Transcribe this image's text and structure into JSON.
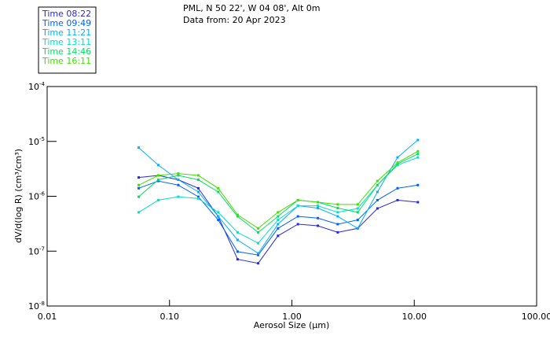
{
  "chart_data": {
    "type": "line",
    "title": "PML, N 50 22', W 04 08', Alt 0m",
    "subtitle": "Data from: 20 Apr 2023",
    "xlabel": "Aerosol Size (µm)",
    "ylabel": "dV/d(log R) (cm³/cm³)",
    "xscale": "log",
    "yscale": "log",
    "xlim": [
      0.01,
      100
    ],
    "ylim": [
      1e-08,
      0.0001
    ],
    "x_ticks": [
      {
        "value": 0.01,
        "label": "0.01"
      },
      {
        "value": 0.1,
        "label": "0.10"
      },
      {
        "value": 1,
        "label": "1.00"
      },
      {
        "value": 10,
        "label": "10.00"
      },
      {
        "value": 100,
        "label": "100.00"
      }
    ],
    "y_ticks": [
      {
        "value": 0.0001,
        "exp": "-4"
      },
      {
        "value": 1e-05,
        "exp": "-5"
      },
      {
        "value": 1e-06,
        "exp": "-6"
      },
      {
        "value": 1e-07,
        "exp": "-7"
      },
      {
        "value": 1e-08,
        "exp": "-8"
      }
    ],
    "y_tick_base": "10",
    "grid": false,
    "legend_position": "top-left",
    "x": [
      0.056,
      0.081,
      0.118,
      0.172,
      0.25,
      0.36,
      0.53,
      0.77,
      1.12,
      1.63,
      2.37,
      3.45,
      5.0,
      7.3,
      10.7
    ],
    "series": [
      {
        "name": "Time 08:22",
        "color": "#2828e0",
        "values": [
          2.2e-06,
          2.4e-06,
          2e-06,
          1.4e-06,
          4.3e-07,
          7.1e-08,
          6e-08,
          1.9e-07,
          3.1e-07,
          2.9e-07,
          2.2e-07,
          2.6e-07,
          6e-07,
          8.5e-07,
          7.8e-07
        ]
      },
      {
        "name": "Time 09:49",
        "color": "#0060ff",
        "values": [
          1.4e-06,
          1.9e-06,
          1.6e-06,
          9.8e-07,
          3.7e-07,
          9.8e-08,
          8.5e-08,
          2.6e-07,
          4.3e-07,
          4e-07,
          3.1e-07,
          3.7e-07,
          8.5e-07,
          1.4e-06,
          1.6e-06
        ]
      },
      {
        "name": "Time 11:21",
        "color": "#00b0ff",
        "values": [
          7.7e-06,
          3.7e-06,
          2e-06,
          1.2e-06,
          4.3e-07,
          1.6e-07,
          9.1e-08,
          3.1e-07,
          6.7e-07,
          6.1e-07,
          4.3e-07,
          2.6e-07,
          1.2e-06,
          5.1e-06,
          1.06e-05
        ]
      },
      {
        "name": "Time 13:11",
        "color": "#00e0c8",
        "values": [
          5.1e-07,
          8.5e-07,
          9.8e-07,
          9.1e-07,
          5.1e-07,
          2.2e-07,
          1.4e-07,
          3.7e-07,
          6.7e-07,
          6.7e-07,
          5.1e-07,
          6e-07,
          1.6e-06,
          3.7e-06,
          5.1e-06
        ]
      },
      {
        "name": "Time 14:46",
        "color": "#00e060",
        "values": [
          9.8e-07,
          2e-06,
          2.4e-06,
          2e-06,
          1.2e-06,
          4.3e-07,
          2.2e-07,
          4.3e-07,
          8.5e-07,
          7.8e-07,
          6.1e-07,
          5.1e-07,
          1.6e-06,
          3.9e-06,
          5.9e-06
        ]
      },
      {
        "name": "Time 16:11",
        "color": "#40e000",
        "values": [
          1.6e-06,
          2.4e-06,
          2.6e-06,
          2.4e-06,
          1.4e-06,
          4.6e-07,
          2.6e-07,
          5.1e-07,
          8.5e-07,
          7.8e-07,
          7.1e-07,
          7.1e-07,
          1.9e-06,
          4.1e-06,
          6.6e-06
        ]
      }
    ]
  }
}
